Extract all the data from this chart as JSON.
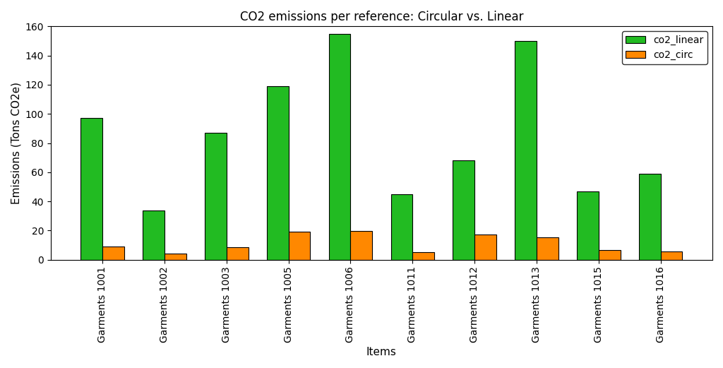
{
  "title": "CO2 emissions per reference: Circular vs. Linear",
  "xlabel": "Items",
  "ylabel": "Emissions (Tons CO2e)",
  "categories": [
    "Garments 1001",
    "Garments 1002",
    "Garments 1003",
    "Garments 1005",
    "Garments 1006",
    "Garments 1011",
    "Garments 1012",
    "Garments 1013",
    "Garments 1015",
    "Garments 1016"
  ],
  "co2_linear": [
    97,
    34,
    87,
    119,
    155,
    45,
    68,
    150,
    47,
    59
  ],
  "co2_circ": [
    9,
    4,
    8.5,
    19,
    19.5,
    5,
    17.5,
    15.5,
    6.5,
    5.5
  ],
  "color_linear": "#22bb22",
  "color_circ": "#ff8800",
  "ylim": [
    0,
    160
  ],
  "yticks": [
    0,
    20,
    40,
    60,
    80,
    100,
    120,
    140,
    160
  ],
  "legend_labels": [
    "co2_linear",
    "co2_circ"
  ],
  "bar_width": 0.35,
  "edge_color": "black",
  "background_color": "#ffffff",
  "title_fontsize": 12,
  "axis_fontsize": 11,
  "tick_fontsize": 10,
  "legend_fontsize": 10,
  "figsize": [
    10.24,
    5.21
  ],
  "dpi": 100
}
